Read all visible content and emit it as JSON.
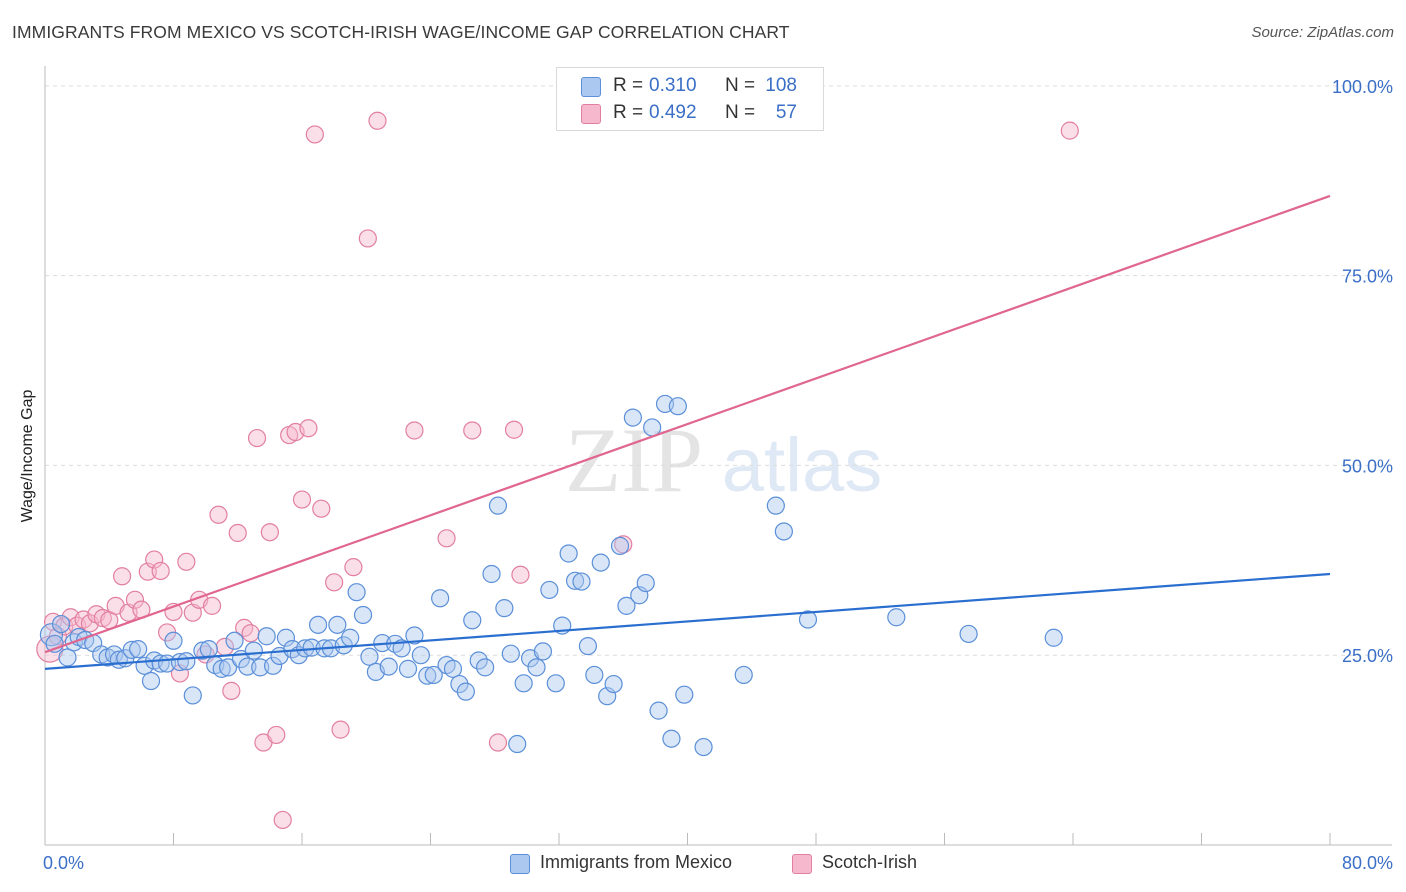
{
  "title": "IMMIGRANTS FROM MEXICO VS SCOTCH-IRISH WAGE/INCOME GAP CORRELATION CHART",
  "source": "Source: ZipAtlas.com",
  "watermark": {
    "zip": "ZIP",
    "atlas": "atlas"
  },
  "colors": {
    "blue_fill": "#aac8f0",
    "blue_stroke": "#5b8fd8",
    "blue_line": "#2a6fd0",
    "pink_fill": "#f6b8cc",
    "pink_stroke": "#e27fa0",
    "pink_line": "#e06690",
    "axis_text": "#3b6fc7"
  },
  "legend_top": [
    {
      "r_label": "R =",
      "r_value": "0.310",
      "n_label": "N =",
      "n_value": "108"
    },
    {
      "r_label": "R =",
      "r_value": "0.492",
      "n_label": "N =",
      "n_value": "57"
    }
  ],
  "legend_bottom": [
    "Immigrants from Mexico",
    "Scotch-Irish"
  ],
  "chart_data": {
    "type": "scatter",
    "title": "IMMIGRANTS FROM MEXICO VS SCOTCH-IRISH WAGE/INCOME GAP CORRELATION CHART",
    "xlabel": "",
    "ylabel": "Wage/Income Gap",
    "xlim": [
      0,
      80
    ],
    "ylim": [
      0,
      102
    ],
    "x_tick_labels": [
      "0.0%",
      "80.0%"
    ],
    "y_ticks": [
      25,
      50,
      75,
      100
    ],
    "y_tick_labels": [
      "25.0%",
      "50.0%",
      "75.0%",
      "100.0%"
    ],
    "grid": "horizontal dashed",
    "legend_position": "top-center",
    "series": [
      {
        "name": "Immigrants from Mexico",
        "trend": {
          "x0": 0,
          "y0": 23.2,
          "x1": 80,
          "y1": 35.7
        },
        "points": [
          [
            0.4,
            27.7
          ],
          [
            0.6,
            26.5
          ],
          [
            1.0,
            29.1
          ],
          [
            1.4,
            24.7
          ],
          [
            1.8,
            26.7
          ],
          [
            2.1,
            27.4
          ],
          [
            2.5,
            27.0
          ],
          [
            3.0,
            26.6
          ],
          [
            3.5,
            25.1
          ],
          [
            3.9,
            24.7
          ],
          [
            4.3,
            25.1
          ],
          [
            4.6,
            24.4
          ],
          [
            5.0,
            24.6
          ],
          [
            5.4,
            25.7
          ],
          [
            5.8,
            25.8
          ],
          [
            6.2,
            23.6
          ],
          [
            6.6,
            21.6
          ],
          [
            6.8,
            24.3
          ],
          [
            7.2,
            23.9
          ],
          [
            7.6,
            23.9
          ],
          [
            8.0,
            26.9
          ],
          [
            8.4,
            24.1
          ],
          [
            8.8,
            24.2
          ],
          [
            9.2,
            19.7
          ],
          [
            9.8,
            25.6
          ],
          [
            10.2,
            25.8
          ],
          [
            10.6,
            23.7
          ],
          [
            11.0,
            23.2
          ],
          [
            11.4,
            23.4
          ],
          [
            11.8,
            26.9
          ],
          [
            12.2,
            24.5
          ],
          [
            12.6,
            23.5
          ],
          [
            13.0,
            25.6
          ],
          [
            13.4,
            23.4
          ],
          [
            13.8,
            27.5
          ],
          [
            14.2,
            23.6
          ],
          [
            14.6,
            24.9
          ],
          [
            15.0,
            27.3
          ],
          [
            15.4,
            25.8
          ],
          [
            15.8,
            25.0
          ],
          [
            16.2,
            25.9
          ],
          [
            16.6,
            26.0
          ],
          [
            17.0,
            29.0
          ],
          [
            17.4,
            25.9
          ],
          [
            17.8,
            25.9
          ],
          [
            18.2,
            29.0
          ],
          [
            18.6,
            26.3
          ],
          [
            19.0,
            27.3
          ],
          [
            19.4,
            33.3
          ],
          [
            19.8,
            30.3
          ],
          [
            20.2,
            24.8
          ],
          [
            20.6,
            22.8
          ],
          [
            21.0,
            26.6
          ],
          [
            21.4,
            23.5
          ],
          [
            21.8,
            26.5
          ],
          [
            22.2,
            25.9
          ],
          [
            22.6,
            23.2
          ],
          [
            23.0,
            27.6
          ],
          [
            23.4,
            25.0
          ],
          [
            23.8,
            22.3
          ],
          [
            24.2,
            22.4
          ],
          [
            24.6,
            32.5
          ],
          [
            25.0,
            23.7
          ],
          [
            25.4,
            23.2
          ],
          [
            25.8,
            21.2
          ],
          [
            26.2,
            20.2
          ],
          [
            26.6,
            29.6
          ],
          [
            27.0,
            24.3
          ],
          [
            27.4,
            23.4
          ],
          [
            27.8,
            35.7
          ],
          [
            28.2,
            44.7
          ],
          [
            28.6,
            31.2
          ],
          [
            29.0,
            25.2
          ],
          [
            29.4,
            13.3
          ],
          [
            29.8,
            21.3
          ],
          [
            30.2,
            24.6
          ],
          [
            30.6,
            23.4
          ],
          [
            31.0,
            25.5
          ],
          [
            31.4,
            33.6
          ],
          [
            31.8,
            21.3
          ],
          [
            32.2,
            28.9
          ],
          [
            32.6,
            38.4
          ],
          [
            33.0,
            34.8
          ],
          [
            33.4,
            34.7
          ],
          [
            33.8,
            26.2
          ],
          [
            34.2,
            22.4
          ],
          [
            34.6,
            37.2
          ],
          [
            35.0,
            19.6
          ],
          [
            35.4,
            21.2
          ],
          [
            35.8,
            39.4
          ],
          [
            36.2,
            31.5
          ],
          [
            36.6,
            56.3
          ],
          [
            37.0,
            32.9
          ],
          [
            37.4,
            34.5
          ],
          [
            37.8,
            55.0
          ],
          [
            38.2,
            17.7
          ],
          [
            38.6,
            58.1
          ],
          [
            39.0,
            14.0
          ],
          [
            39.4,
            57.8
          ],
          [
            39.8,
            19.8
          ],
          [
            41.0,
            12.9
          ],
          [
            43.5,
            22.4
          ],
          [
            45.5,
            44.7
          ],
          [
            46.0,
            41.3
          ],
          [
            47.5,
            29.7
          ],
          [
            53.0,
            30.0
          ],
          [
            57.5,
            27.8
          ],
          [
            62.8,
            27.3
          ]
        ]
      },
      {
        "name": "Scotch-Irish",
        "trend": {
          "x0": 0,
          "y0": 25.4,
          "x1": 80,
          "y1": 85.5
        },
        "points": [
          [
            0.3,
            25.8
          ],
          [
            0.5,
            29.4
          ],
          [
            0.8,
            27.5
          ],
          [
            1.2,
            28.8
          ],
          [
            1.6,
            30.0
          ],
          [
            2.0,
            28.9
          ],
          [
            2.4,
            29.7
          ],
          [
            2.8,
            29.2
          ],
          [
            3.2,
            30.4
          ],
          [
            3.6,
            29.9
          ],
          [
            4.0,
            29.6
          ],
          [
            4.4,
            31.5
          ],
          [
            4.8,
            35.4
          ],
          [
            5.2,
            30.6
          ],
          [
            5.6,
            32.3
          ],
          [
            6.0,
            31.0
          ],
          [
            6.4,
            36.0
          ],
          [
            6.8,
            37.6
          ],
          [
            7.2,
            36.1
          ],
          [
            7.6,
            28.0
          ],
          [
            8.0,
            30.7
          ],
          [
            8.4,
            22.6
          ],
          [
            8.8,
            37.3
          ],
          [
            9.2,
            30.6
          ],
          [
            9.6,
            32.3
          ],
          [
            10.0,
            25.1
          ],
          [
            10.4,
            31.5
          ],
          [
            10.8,
            43.5
          ],
          [
            11.2,
            26.1
          ],
          [
            11.6,
            20.3
          ],
          [
            12.0,
            41.1
          ],
          [
            12.4,
            28.6
          ],
          [
            12.8,
            27.9
          ],
          [
            13.2,
            53.6
          ],
          [
            13.6,
            13.5
          ],
          [
            14.0,
            41.2
          ],
          [
            14.4,
            14.5
          ],
          [
            14.8,
            3.3
          ],
          [
            15.2,
            54.0
          ],
          [
            15.6,
            54.4
          ],
          [
            16.0,
            45.5
          ],
          [
            16.4,
            54.9
          ],
          [
            16.8,
            93.6
          ],
          [
            17.2,
            44.3
          ],
          [
            18.0,
            34.6
          ],
          [
            18.4,
            15.2
          ],
          [
            19.2,
            36.6
          ],
          [
            20.1,
            79.9
          ],
          [
            20.7,
            95.4
          ],
          [
            23.0,
            54.6
          ],
          [
            25.0,
            40.4
          ],
          [
            26.6,
            54.6
          ],
          [
            28.2,
            13.5
          ],
          [
            29.2,
            54.7
          ],
          [
            29.6,
            35.6
          ],
          [
            36.0,
            39.6
          ],
          [
            63.8,
            94.1
          ]
        ]
      }
    ]
  }
}
